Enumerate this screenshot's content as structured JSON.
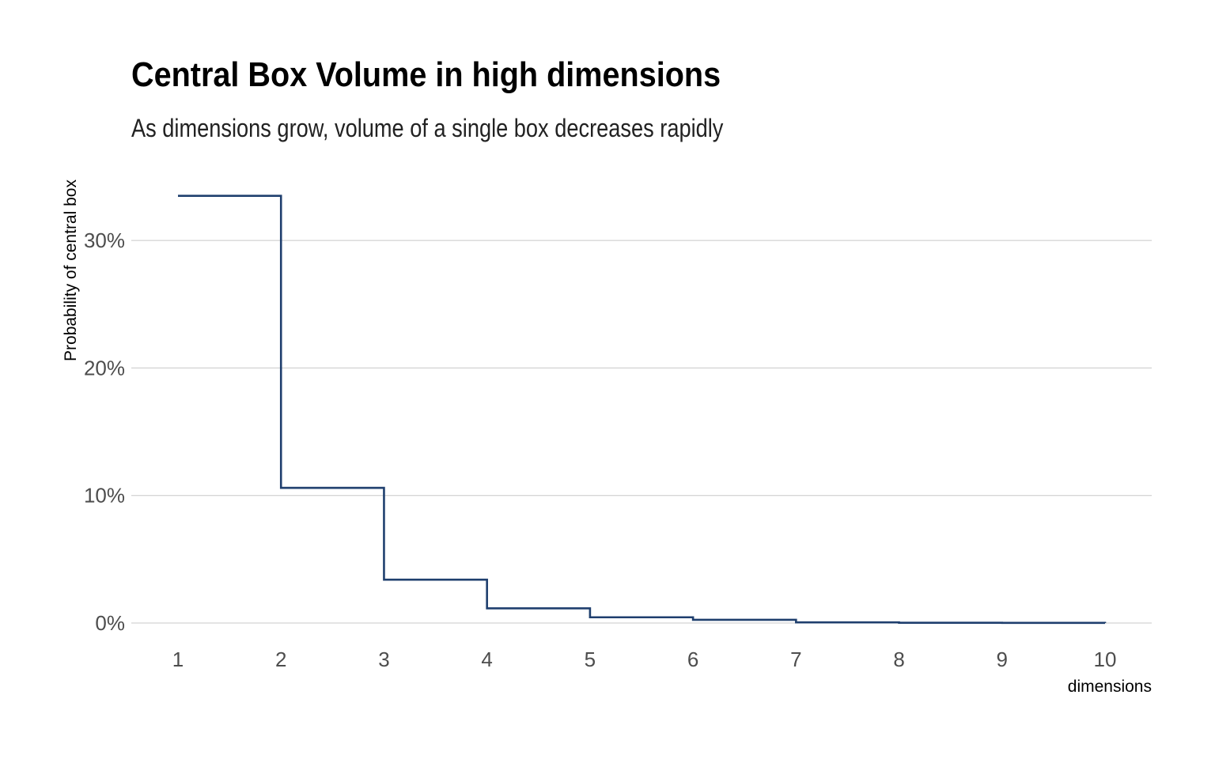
{
  "chart_data": {
    "type": "line",
    "step": "post",
    "title": "Central Box Volume in high dimensions",
    "subtitle": "As dimensions grow, volume of a single box decreases rapidly",
    "xlabel": "dimensions",
    "ylabel": "Probability of central box",
    "x": [
      1,
      2,
      3,
      4,
      5,
      6,
      7,
      8,
      9,
      10
    ],
    "values": [
      33.5,
      10.6,
      3.4,
      1.15,
      0.45,
      0.25,
      0.05,
      0.02,
      0.01,
      0.0
    ],
    "xlim": [
      1,
      10
    ],
    "ylim": [
      0,
      35
    ],
    "x_ticks": [
      "1",
      "2",
      "3",
      "4",
      "5",
      "6",
      "7",
      "8",
      "9",
      "10"
    ],
    "y_ticks": [
      0,
      10,
      20,
      30
    ],
    "y_tick_labels": [
      "0%",
      "10%",
      "20%",
      "30%"
    ],
    "grid": "horizontal",
    "legend": "none",
    "line_color": "#1f3f6e",
    "grid_color": "#c8c8c8"
  }
}
